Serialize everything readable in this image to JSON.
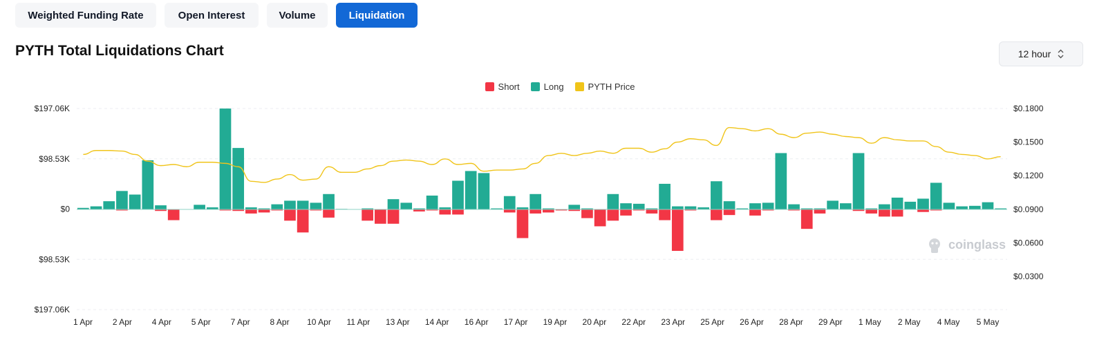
{
  "tabs": [
    {
      "label": "Weighted Funding Rate",
      "active": false
    },
    {
      "label": "Open Interest",
      "active": false
    },
    {
      "label": "Volume",
      "active": false
    },
    {
      "label": "Liquidation",
      "active": true
    }
  ],
  "title": "PYTH Total Liquidations Chart",
  "interval": {
    "value": "12 hour"
  },
  "watermark": "coinglass",
  "colors": {
    "short": "#f23645",
    "long": "#22ab94",
    "price": "#f0c419",
    "accent": "#1268d6"
  },
  "chart_data": {
    "type": "bar",
    "title": "PYTH Total Liquidations Chart",
    "legend": [
      "Short",
      "Long",
      "PYTH Price"
    ],
    "legend_position": "top-center",
    "grid": true,
    "x_tick_labels": [
      "1 Apr",
      "2 Apr",
      "4 Apr",
      "5 Apr",
      "7 Apr",
      "8 Apr",
      "10 Apr",
      "11 Apr",
      "13 Apr",
      "14 Apr",
      "16 Apr",
      "17 Apr",
      "19 Apr",
      "20 Apr",
      "22 Apr",
      "23 Apr",
      "25 Apr",
      "26 Apr",
      "28 Apr",
      "29 Apr",
      "1 May",
      "2 May",
      "4 May",
      "5 May"
    ],
    "y_left_tick_labels": [
      "$197.06K",
      "$98.53K",
      "$0",
      "$98.53K",
      "$197.06K"
    ],
    "y_left_range": [
      -197060,
      197060
    ],
    "y_right_tick_labels": [
      "$0.1800",
      "$0.1500",
      "$0.1200",
      "$0.0900",
      "$0.0600",
      "$0.0300"
    ],
    "y_right_range": [
      0.0,
      0.18
    ],
    "long_values": [
      3000,
      6000,
      16000,
      36000,
      29000,
      96000,
      8000,
      0,
      0,
      9000,
      4000,
      197000,
      120000,
      4000,
      2000,
      10000,
      17000,
      17000,
      13000,
      30000,
      1000,
      0,
      2000,
      0,
      20000,
      13000,
      2000,
      27000,
      4000,
      56000,
      75000,
      71000,
      2000,
      26000,
      4000,
      30000,
      2000,
      0,
      9000,
      2000,
      0,
      30000,
      12000,
      11000,
      2000,
      50000,
      6000,
      6000,
      4000,
      55000,
      16000,
      2000,
      12000,
      13000,
      110000,
      10000,
      2000,
      2000,
      17000,
      12000,
      110000,
      2000,
      10000,
      23000,
      15000,
      21000,
      52000,
      13000,
      6000,
      7000,
      14000,
      2000
    ],
    "short_values": [
      0,
      0,
      0,
      2000,
      0,
      0,
      3000,
      21000,
      0,
      0,
      0,
      2000,
      3000,
      8000,
      6000,
      2000,
      22000,
      45000,
      2000,
      16000,
      0,
      0,
      22000,
      28000,
      28000,
      0,
      4000,
      2000,
      10000,
      10000,
      0,
      0,
      0,
      6000,
      56000,
      8000,
      6000,
      2000,
      3000,
      17000,
      33000,
      22000,
      12000,
      2000,
      8000,
      21000,
      81000,
      2000,
      0,
      21000,
      11000,
      0,
      12000,
      2000,
      0,
      2000,
      38000,
      8000,
      0,
      0,
      3000,
      8000,
      14000,
      14000,
      0,
      5000,
      2000,
      0,
      0,
      0,
      0,
      0
    ],
    "price_values": [
      0.139,
      0.1425,
      0.1425,
      0.142,
      0.139,
      0.133,
      0.129,
      0.13,
      0.128,
      0.132,
      0.132,
      0.131,
      0.128,
      0.115,
      0.114,
      0.117,
      0.121,
      0.116,
      0.117,
      0.128,
      0.123,
      0.123,
      0.126,
      0.129,
      0.133,
      0.134,
      0.133,
      0.13,
      0.135,
      0.13,
      0.131,
      0.124,
      0.125,
      0.125,
      0.126,
      0.131,
      0.138,
      0.14,
      0.138,
      0.14,
      0.142,
      0.14,
      0.1445,
      0.1445,
      0.141,
      0.144,
      0.15,
      0.153,
      0.152,
      0.147,
      0.163,
      0.162,
      0.16,
      0.162,
      0.157,
      0.154,
      0.158,
      0.159,
      0.157,
      0.155,
      0.154,
      0.149,
      0.154,
      0.152,
      0.151,
      0.151,
      0.146,
      0.141,
      0.139,
      0.138,
      0.135,
      0.137
    ]
  }
}
